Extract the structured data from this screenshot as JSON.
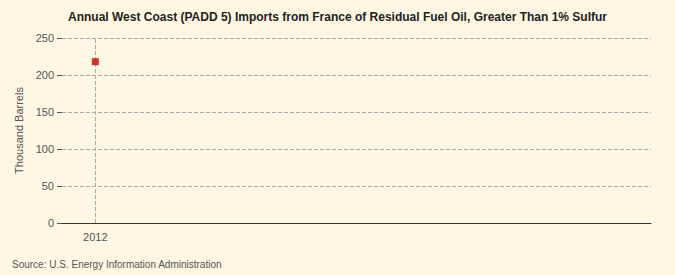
{
  "chart_data": {
    "type": "scatter",
    "title": "Annual West Coast (PADD 5) Imports from France of Residual Fuel Oil, Greater Than 1% Sulfur",
    "ylabel": "Thousand Barrels",
    "source": "Source: U.S. Energy Information Administration",
    "x": [
      2012
    ],
    "values": [
      218
    ],
    "color": "#cc0000",
    "marker": "square",
    "xlim": [
      2011.4,
      2022
    ],
    "xticks": [
      2012
    ],
    "ylim": [
      0,
      250
    ],
    "yticks": [
      0,
      50,
      100,
      150,
      200,
      250
    ],
    "grid": true
  }
}
